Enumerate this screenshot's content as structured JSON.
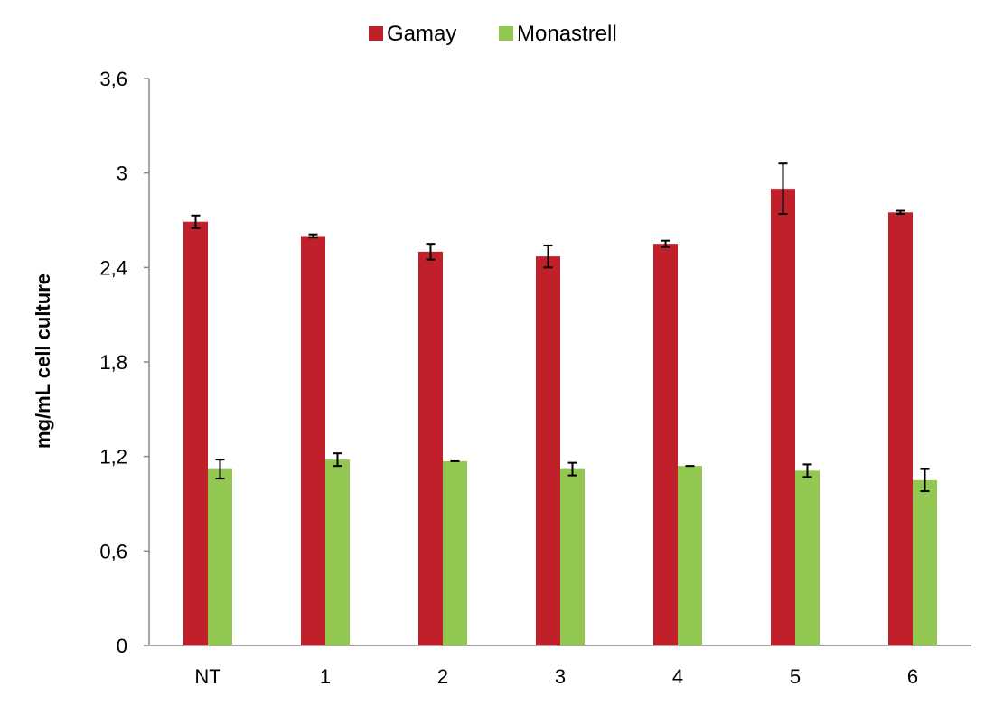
{
  "chart_data": {
    "type": "bar",
    "title": "",
    "xlabel": "",
    "ylabel": "mg/mL cell culture",
    "ylim": [
      0,
      3.6
    ],
    "y_ticks": [
      "0",
      "0,6",
      "1,2",
      "1,8",
      "2,4",
      "3",
      "3,6"
    ],
    "y_tick_values": [
      0,
      0.6,
      1.2,
      1.8,
      2.4,
      3.0,
      3.6
    ],
    "categories": [
      "NT",
      "1",
      "2",
      "3",
      "4",
      "5",
      "6"
    ],
    "legend_position": "top-center",
    "grid": false,
    "series": [
      {
        "name": "Gamay",
        "color": "#C0202A",
        "values": [
          2.69,
          2.6,
          2.5,
          2.47,
          2.55,
          2.9,
          2.75
        ],
        "errors": [
          0.04,
          0.01,
          0.05,
          0.07,
          0.02,
          0.16,
          0.01
        ]
      },
      {
        "name": "Monastrell",
        "color": "#92C752",
        "values": [
          1.12,
          1.18,
          1.17,
          1.12,
          1.14,
          1.11,
          1.05
        ],
        "errors": [
          0.06,
          0.04,
          0.0,
          0.04,
          0.0,
          0.04,
          0.07
        ]
      }
    ]
  }
}
